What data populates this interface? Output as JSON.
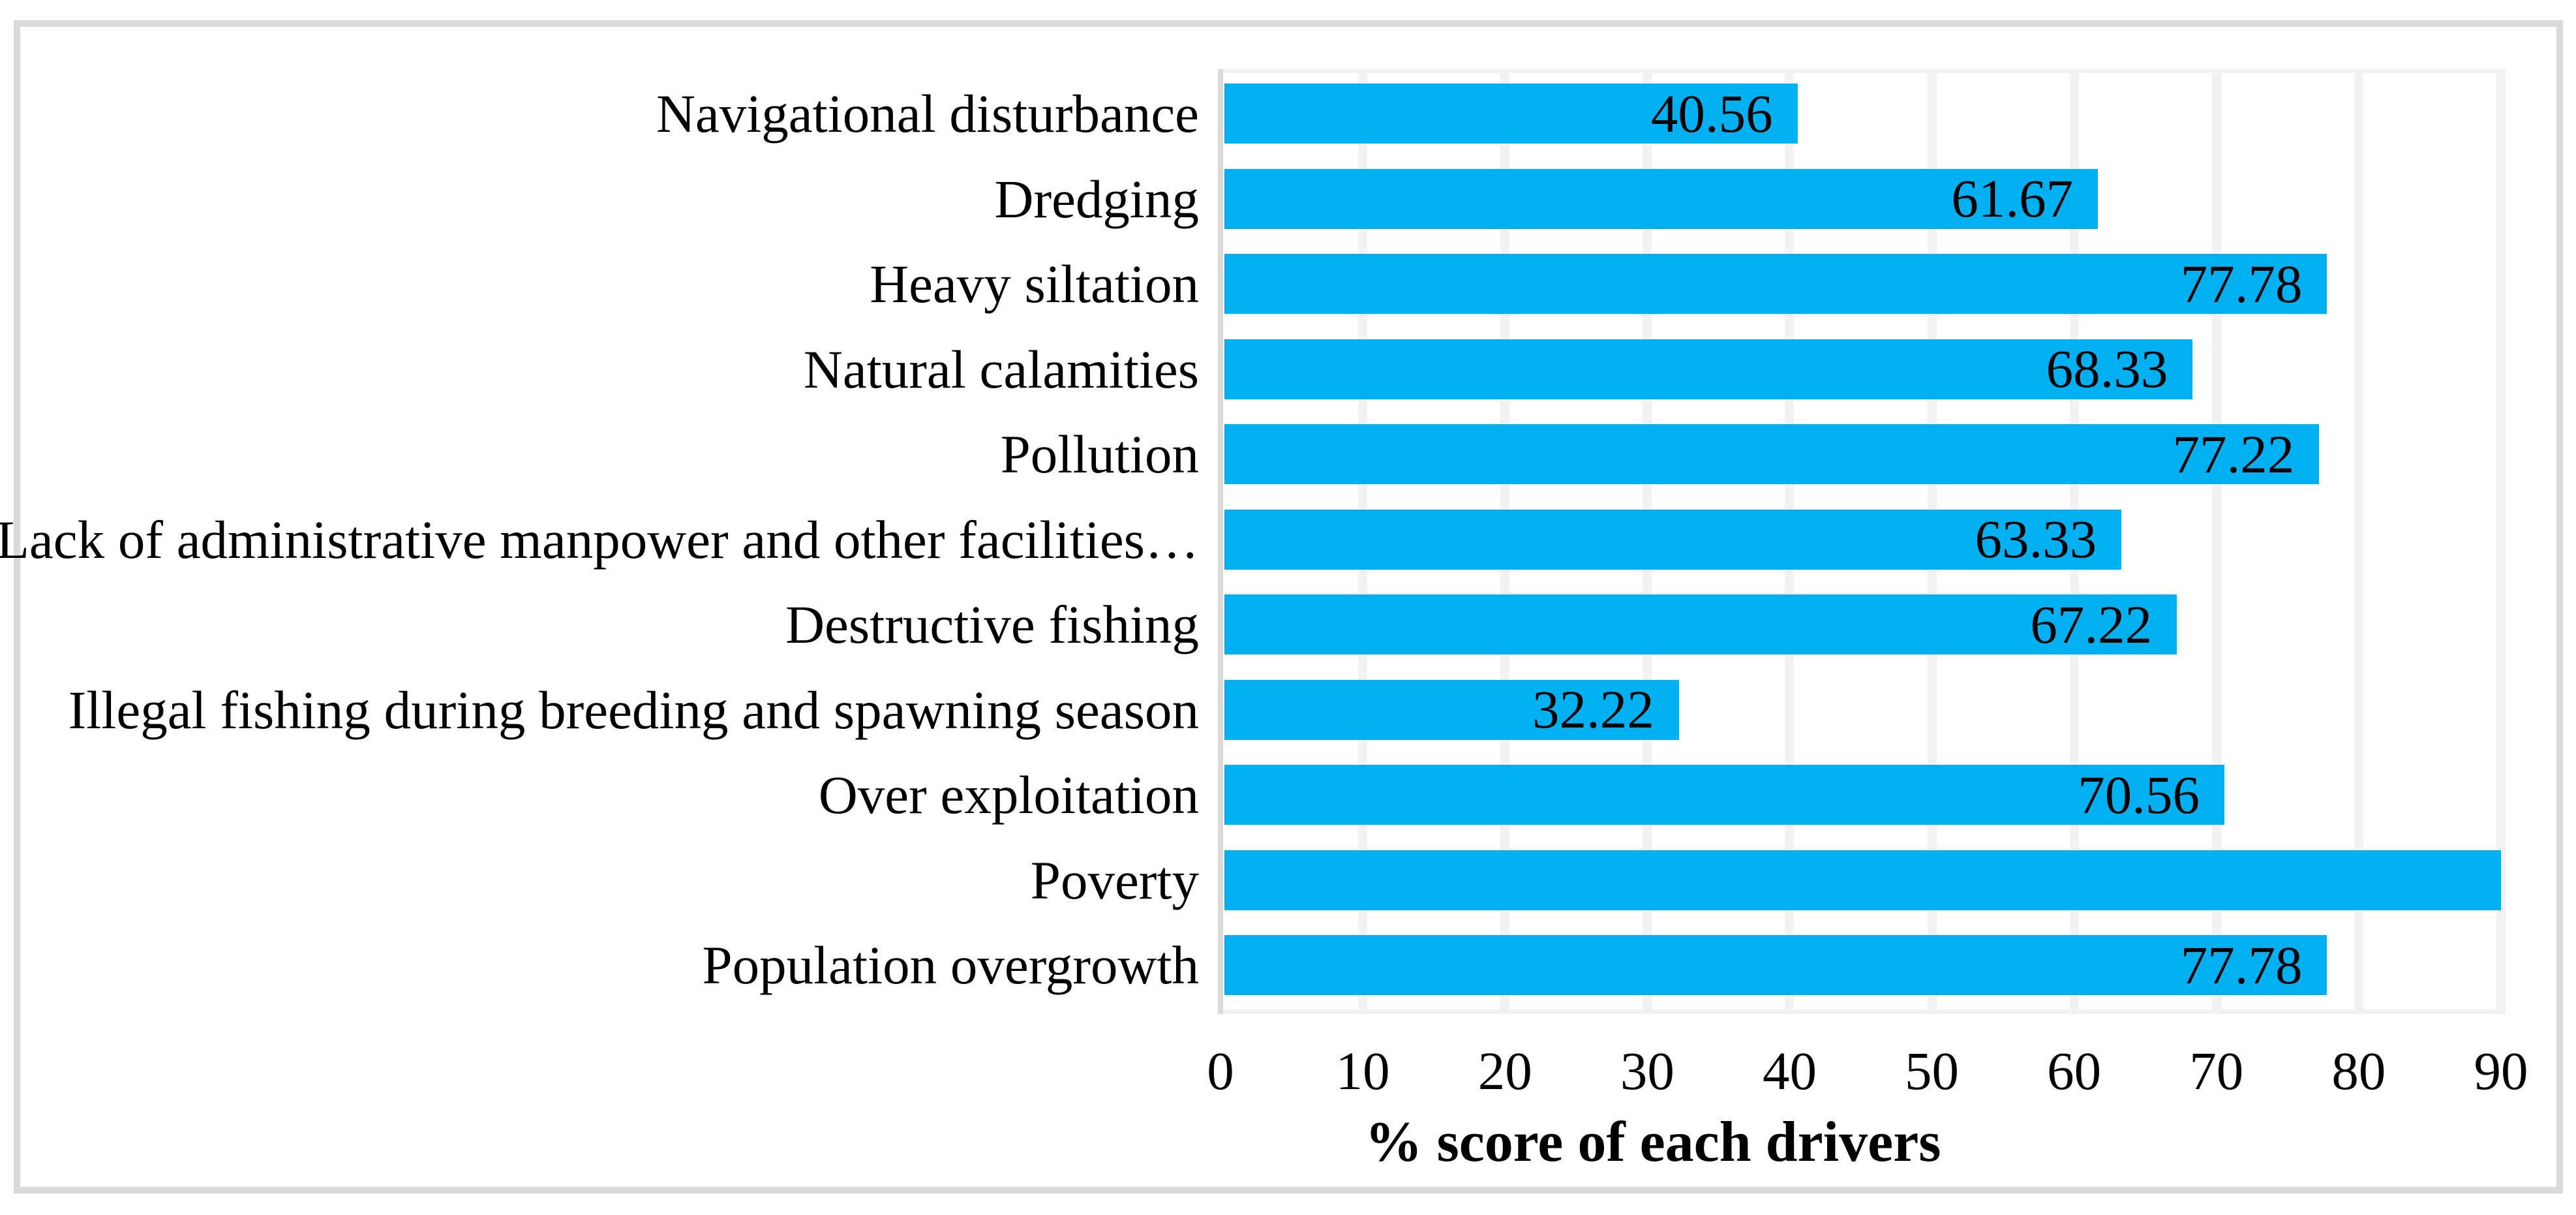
{
  "chart_data": {
    "type": "bar",
    "orientation": "horizontal",
    "title": "",
    "xlabel": "% score of each drivers",
    "ylabel": "",
    "categories": [
      "Navigational disturbance",
      "Dredging",
      "Heavy siltation",
      "Natural calamities",
      "Pollution",
      "Lack of administrative manpower and other facilities…",
      "Destructive fishing",
      "Illegal fishing during breeding and spawning season",
      "Over exploitation",
      "Poverty",
      "Population overgrowth"
    ],
    "values": [
      40.56,
      61.67,
      77.78,
      68.33,
      77.22,
      63.33,
      67.22,
      32.22,
      70.56,
      90.56,
      77.78
    ],
    "value_labels": [
      "40.56",
      "61.67",
      "77.78",
      "68.33",
      "77.22",
      "63.33",
      "67.22",
      "32.22",
      "70.56",
      "",
      "77.78"
    ],
    "x_ticks": [
      0,
      10,
      20,
      30,
      40,
      50,
      60,
      70,
      80,
      90
    ],
    "x_tick_labels": [
      "0",
      "10",
      "20",
      "30",
      "40",
      "50",
      "60",
      "70",
      "80",
      "90"
    ],
    "xlim": [
      0,
      90
    ],
    "grid": "vertical-major",
    "legend": "none",
    "colors": {
      "bar": "#00B0F0",
      "gridline": "#F2F2F2",
      "axis_line": "#D9D9D9",
      "frame_border": "#D9D9D9",
      "text": "#000000",
      "background": "#FFFFFF"
    }
  }
}
